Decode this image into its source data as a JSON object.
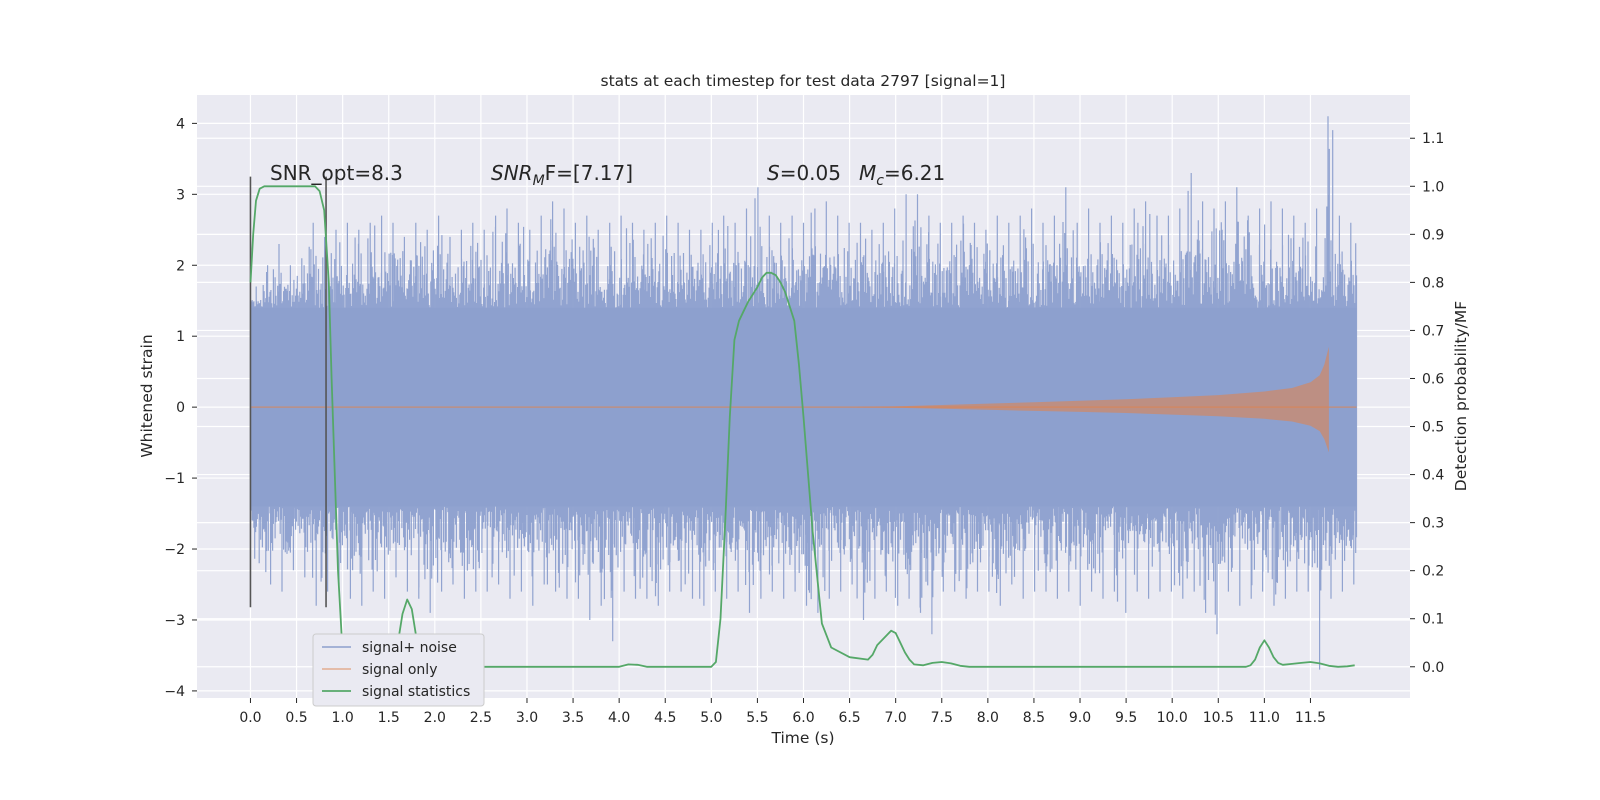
{
  "chart_data": {
    "type": "line",
    "title": "stats at each timestep for test data 2797 [signal=1]",
    "xlabel": "Time (s)",
    "ylabel_left": "Whitened strain",
    "ylabel_right": "Detection probability/MF",
    "xlim": [
      -0.58,
      12.58
    ],
    "ylim_left": [
      -4.1,
      4.4
    ],
    "ylim_right": [
      -0.065,
      1.19
    ],
    "xticks": [
      "0.0",
      "0.5",
      "1.0",
      "1.5",
      "2.0",
      "2.5",
      "3.0",
      "3.5",
      "4.0",
      "4.5",
      "5.0",
      "5.5",
      "6.0",
      "6.5",
      "7.0",
      "7.5",
      "8.0",
      "8.5",
      "9.0",
      "9.5",
      "10.0",
      "10.5",
      "11.0",
      "11.5"
    ],
    "yticks_left": [
      "4",
      "3",
      "2",
      "1",
      "0",
      "−1",
      "−2",
      "−3",
      "−4"
    ],
    "yticks_right": [
      "1.1",
      "1.0",
      "0.9",
      "0.8",
      "0.7",
      "0.6",
      "0.5",
      "0.4",
      "0.3",
      "0.2",
      "0.1",
      "0.0"
    ],
    "annotations": {
      "snr_opt": "SNR_opt=8.3",
      "snr_mf_sym": "SNR",
      "snr_mf_sub": "M",
      "snr_mf_rest": "F=[7.17]",
      "s_sym": "S",
      "s_val": "=0.05",
      "mc_sym": "M",
      "mc_sub": "c",
      "mc_val": "=6.21"
    },
    "grid": true,
    "legend_position": "lower-left",
    "series": [
      {
        "name": "signal+ noise",
        "color": "#8c9fcd",
        "description_range": [
          0.0,
          12.0
        ],
        "band_upper": [
          1.7,
          2.0,
          2.3,
          2.0,
          2.1,
          2.6,
          2.4,
          2.5,
          2.6,
          2.5,
          2.6,
          2.7,
          2.6,
          2.4,
          2.6,
          2.5,
          2.7,
          2.4,
          2.5,
          2.6,
          2.5,
          2.7,
          2.8,
          2.6,
          2.5,
          2.7,
          2.9,
          2.8,
          2.6,
          2.7,
          2.5,
          2.6,
          2.7,
          2.6,
          2.5,
          2.6,
          2.7,
          2.6,
          2.5,
          2.5,
          2.6,
          2.7,
          2.6,
          2.8,
          3.1,
          2.7,
          2.6,
          2.7,
          2.6,
          2.8,
          2.9,
          2.7,
          2.6,
          2.6,
          2.5,
          2.6,
          2.8,
          3.0,
          3.0,
          2.7,
          2.6,
          2.6,
          2.7,
          2.6,
          2.5,
          2.7,
          2.6,
          2.7,
          2.8,
          2.6,
          2.7,
          3.1,
          2.6,
          2.8,
          2.6,
          2.7,
          2.6,
          2.8,
          2.9,
          2.7,
          2.7,
          2.8,
          3.3,
          2.9,
          2.8,
          2.9,
          3.1,
          2.7,
          2.8,
          2.9,
          2.8,
          2.7,
          2.6,
          2.8,
          4.1,
          2.7,
          2.6
        ],
        "band_lower": [
          -2.2,
          -2.5,
          -2.6,
          -2.3,
          -2.4,
          -2.8,
          -2.6,
          -2.5,
          -2.7,
          -2.8,
          -2.6,
          -2.7,
          -2.4,
          -2.6,
          -2.7,
          -2.9,
          -2.6,
          -2.5,
          -2.7,
          -2.6,
          -2.6,
          -2.5,
          -2.7,
          -2.6,
          -2.8,
          -2.5,
          -2.6,
          -2.7,
          -2.7,
          -3.0,
          -2.8,
          -3.3,
          -2.6,
          -2.7,
          -2.7,
          -2.8,
          -2.6,
          -2.6,
          -2.7,
          -2.8,
          -2.6,
          -2.7,
          -2.6,
          -2.9,
          -2.7,
          -2.6,
          -2.7,
          -2.6,
          -2.8,
          -2.9,
          -2.7,
          -2.6,
          -2.5,
          -3.0,
          -2.7,
          -2.6,
          -2.8,
          -2.7,
          -2.9,
          -3.2,
          -2.6,
          -2.6,
          -2.7,
          -2.6,
          -2.6,
          -2.8,
          -2.5,
          -2.7,
          -2.6,
          -2.6,
          -2.7,
          -2.6,
          -2.8,
          -2.6,
          -2.7,
          -2.6,
          -2.9,
          -2.6,
          -2.7,
          -2.6,
          -2.6,
          -2.7,
          -2.6,
          -2.9,
          -3.2,
          -2.6,
          -2.8,
          -2.7,
          -2.6,
          -2.8,
          -2.7,
          -2.6,
          -2.6,
          -3.7,
          -2.7,
          -2.6,
          -2.5
        ]
      },
      {
        "name": "signal only",
        "color": "#dd8452",
        "x": [
          0.0,
          6.5,
          7.0,
          7.5,
          8.0,
          8.5,
          9.0,
          9.5,
          10.0,
          10.5,
          11.0,
          11.3,
          11.5,
          11.6,
          11.65,
          11.7
        ],
        "y_envelope": [
          0.0,
          0.0,
          0.01,
          0.03,
          0.05,
          0.07,
          0.09,
          0.11,
          0.14,
          0.17,
          0.22,
          0.27,
          0.35,
          0.45,
          0.6,
          0.85
        ]
      },
      {
        "name": "signal statistics",
        "color": "#55a868",
        "x": [
          0.0,
          0.03,
          0.06,
          0.1,
          0.15,
          0.2,
          0.3,
          0.5,
          0.7,
          0.75,
          0.8,
          0.85,
          0.88,
          0.95,
          1.0,
          1.1,
          1.2,
          1.5,
          1.55,
          1.6,
          1.65,
          1.7,
          1.75,
          1.8,
          1.85,
          1.9,
          2.0,
          2.5,
          3.0,
          3.5,
          4.0,
          4.1,
          4.2,
          4.3,
          4.5,
          4.8,
          5.0,
          5.05,
          5.1,
          5.15,
          5.2,
          5.25,
          5.3,
          5.35,
          5.4,
          5.5,
          5.55,
          5.6,
          5.65,
          5.7,
          5.75,
          5.8,
          5.9,
          5.95,
          6.0,
          6.05,
          6.1,
          6.2,
          6.3,
          6.5,
          6.7,
          6.75,
          6.8,
          6.9,
          6.95,
          7.0,
          7.05,
          7.1,
          7.15,
          7.2,
          7.3,
          7.4,
          7.5,
          7.6,
          7.7,
          7.8,
          8.0,
          9.0,
          10.0,
          10.5,
          10.8,
          10.85,
          10.9,
          10.95,
          11.0,
          11.05,
          11.1,
          11.15,
          11.2,
          11.3,
          11.4,
          11.5,
          11.6,
          11.7,
          11.8,
          11.9,
          11.98
        ],
        "y": [
          0.8,
          0.9,
          0.97,
          0.995,
          1.0,
          1.0,
          1.0,
          1.0,
          1.0,
          0.99,
          0.95,
          0.8,
          0.6,
          0.2,
          0.03,
          0.0,
          0.0,
          0.0,
          0.01,
          0.05,
          0.11,
          0.14,
          0.12,
          0.06,
          0.02,
          0.005,
          0.0,
          0.0,
          0.0,
          0.0,
          0.0,
          0.005,
          0.004,
          0.0,
          0.0,
          0.0,
          0.0,
          0.01,
          0.1,
          0.3,
          0.52,
          0.68,
          0.72,
          0.74,
          0.76,
          0.79,
          0.81,
          0.82,
          0.82,
          0.815,
          0.8,
          0.78,
          0.72,
          0.63,
          0.52,
          0.4,
          0.28,
          0.09,
          0.04,
          0.02,
          0.015,
          0.025,
          0.045,
          0.065,
          0.075,
          0.07,
          0.05,
          0.03,
          0.015,
          0.005,
          0.003,
          0.008,
          0.01,
          0.007,
          0.002,
          0.0,
          0.0,
          0.0,
          0.0,
          0.0,
          0.0,
          0.003,
          0.015,
          0.04,
          0.055,
          0.04,
          0.02,
          0.008,
          0.004,
          0.006,
          0.008,
          0.01,
          0.007,
          0.002,
          0.0,
          0.001,
          0.003
        ]
      }
    ]
  }
}
